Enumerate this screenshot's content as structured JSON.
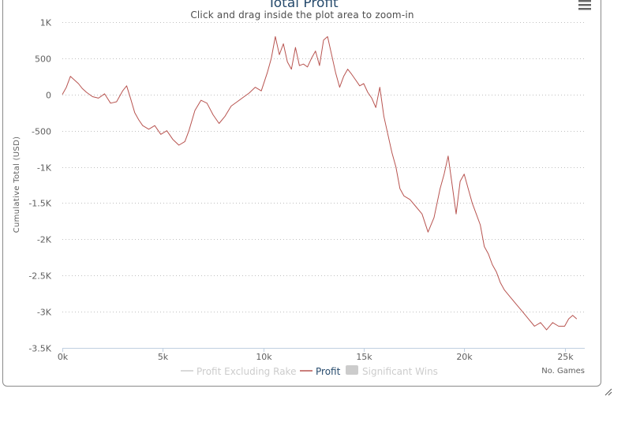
{
  "chart_data": {
    "type": "line",
    "title": "Total Profit",
    "subtitle": "Click and drag inside the plot area to zoom-in",
    "xlabel": "No. Games",
    "ylabel": "Cumulative Total (USD)",
    "xlim": [
      0,
      26000
    ],
    "ylim": [
      -3500,
      1000
    ],
    "x_ticks": [
      0,
      5000,
      10000,
      15000,
      20000,
      25000
    ],
    "x_tick_labels": [
      "0k",
      "5k",
      "10k",
      "15k",
      "20k",
      "25k"
    ],
    "y_ticks": [
      1000,
      500,
      0,
      -500,
      -1000,
      -1500,
      -2000,
      -2500,
      -3000,
      -3500
    ],
    "y_tick_labels": [
      "1K",
      "500",
      "0",
      "-500",
      "-1K",
      "-1.5K",
      "-2K",
      "-2.5K",
      "-3K",
      "-3.5K"
    ],
    "grid": true,
    "legend_position": "bottom",
    "series": [
      {
        "name": "Profit",
        "color": "#b85450",
        "visible": true,
        "x": [
          0,
          200,
          400,
          600,
          800,
          1000,
          1200,
          1500,
          1800,
          2100,
          2400,
          2700,
          3000,
          3200,
          3400,
          3600,
          3800,
          4000,
          4300,
          4600,
          4900,
          5200,
          5500,
          5800,
          6100,
          6300,
          6600,
          6900,
          7200,
          7500,
          7800,
          8100,
          8400,
          8700,
          9000,
          9300,
          9600,
          9900,
          10200,
          10400,
          10600,
          10800,
          11000,
          11200,
          11400,
          11600,
          11800,
          12000,
          12200,
          12400,
          12600,
          12800,
          13000,
          13200,
          13400,
          13600,
          13800,
          14000,
          14200,
          14400,
          14600,
          14800,
          15000,
          15200,
          15400,
          15600,
          15800,
          16000,
          16200,
          16400,
          16600,
          16800,
          17000,
          17300,
          17600,
          17900,
          18200,
          18500,
          18800,
          19000,
          19200,
          19400,
          19600,
          19800,
          20000,
          20200,
          20400,
          20600,
          20800,
          21000,
          21200,
          21400,
          21600,
          21800,
          22000,
          22300,
          22600,
          22900,
          23200,
          23500,
          23800,
          24100,
          24400,
          24700,
          25000,
          25200,
          25400,
          25600
        ],
        "y": [
          0,
          100,
          250,
          200,
          150,
          80,
          30,
          -30,
          -50,
          10,
          -120,
          -100,
          50,
          120,
          -60,
          -250,
          -350,
          -430,
          -480,
          -430,
          -550,
          -500,
          -620,
          -700,
          -650,
          -500,
          -220,
          -80,
          -120,
          -280,
          -400,
          -300,
          -160,
          -100,
          -40,
          20,
          100,
          50,
          300,
          500,
          800,
          550,
          700,
          450,
          350,
          650,
          400,
          420,
          380,
          500,
          600,
          400,
          750,
          800,
          550,
          300,
          100,
          250,
          350,
          280,
          200,
          120,
          150,
          30,
          -50,
          -180,
          100,
          -300,
          -550,
          -800,
          -1000,
          -1300,
          -1400,
          -1450,
          -1550,
          -1650,
          -1900,
          -1700,
          -1300,
          -1100,
          -850,
          -1250,
          -1650,
          -1200,
          -1100,
          -1300,
          -1500,
          -1650,
          -1800,
          -2100,
          -2200,
          -2350,
          -2450,
          -2600,
          -2700,
          -2800,
          -2900,
          -3000,
          -3100,
          -3200,
          -3150,
          -3250,
          -3150,
          -3200,
          -3200,
          -3100,
          -3050,
          -3100
        ]
      },
      {
        "name": "Profit Excluding Rake",
        "color": "#cccccc",
        "visible": false
      },
      {
        "name": "Significant Wins",
        "color": "#cccccc",
        "visible": false
      }
    ]
  },
  "menu": {
    "icon": "hamburger-menu-icon"
  }
}
